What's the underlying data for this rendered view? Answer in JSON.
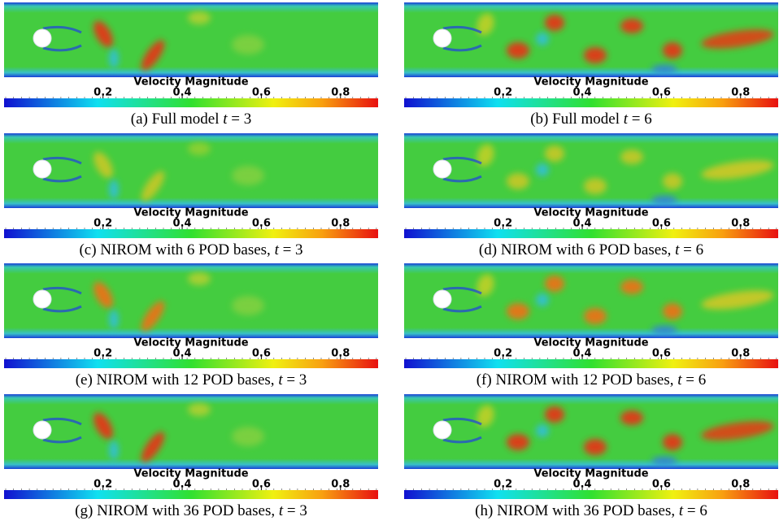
{
  "colorbar": {
    "title": "Velocity Magnitude",
    "range": [
      -0.05,
      0.895
    ],
    "ticks": [
      0.2,
      0.4,
      0.6,
      0.8
    ]
  },
  "panels": [
    {
      "label": "(a)",
      "text": "Full model",
      "var": "t",
      "rest": "= 3"
    },
    {
      "label": "(b)",
      "text": "Full model",
      "var": "t",
      "rest": "= 6"
    },
    {
      "label": "(c)",
      "text": "NIROM with 6 POD bases,",
      "var": "t",
      "rest": "= 3"
    },
    {
      "label": "(d)",
      "text": "NIROM with 6 POD bases,",
      "var": "t",
      "rest": "= 6"
    },
    {
      "label": "(e)",
      "text": "NIROM with 12 POD bases,",
      "var": "t",
      "rest": "= 3"
    },
    {
      "label": "(f)",
      "text": "NIROM with 12 POD bases,",
      "var": "t",
      "rest": "= 6"
    },
    {
      "label": "(g)",
      "text": "NIROM with 36 POD bases,",
      "var": "t",
      "rest": "= 3"
    },
    {
      "label": "(h)",
      "text": "NIROM with 36 POD bases,",
      "var": "t",
      "rest": "= 6"
    }
  ]
}
